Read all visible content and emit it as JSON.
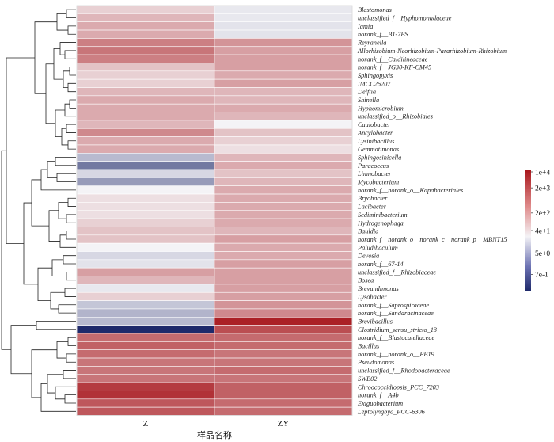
{
  "chart_data": {
    "type": "heatmap",
    "title": "",
    "xlabel": "样品名称",
    "ylabel": "",
    "columns": [
      "Z",
      "ZY"
    ],
    "rows": [
      "Blastomonas",
      "unclassified_f__Hyphomonadaceae",
      "Iamia",
      "norank_f__B1-7BS",
      "Reyranella",
      "Allorhizobium-Neorhizobium-Pararhizobium-Rhizobium",
      "norank_f__Caldilineaceae",
      "norank_f__JG30-KF-CM45",
      "Sphingopyxis",
      "IMCC26207",
      "Delftia",
      "Shinella",
      "Hyphomicrobium",
      "unclassified_o__Rhizobiales",
      "Caulobacter",
      "Ancylobacter",
      "Lysinibacillus",
      "Gemmatimonas",
      "Sphingosinicella",
      "Paracoccus",
      "Limnobacter",
      "Mycobacterium",
      "norank_f__norank_o__Kapabacteriales",
      "Bryobacter",
      "Lacibacter",
      "Sediminibacterium",
      "Hydrogenophaga",
      "Bauldia",
      "norank_f__norank_o__norank_c__norank_p__MBNT15",
      "Paludibaculum",
      "Devosia",
      "norank_f__67-14",
      "unclassified_f__Rhizobiaceae",
      "Bosea",
      "Brevundimonas",
      "Lysobacter",
      "norank_f__Saprospiraceae",
      "norank_f__Sandaracinaceae",
      "Brevibacillus",
      "Clostridium_sensu_stricto_13",
      "norank_f__Blastocatellaceae",
      "Bacillus",
      "norank_f__norank_o__PB19",
      "Pseudomonas",
      "unclassified_f__Rhodobacteraceae",
      "SWB02",
      "Chroococcidiopsis_PCC_7203",
      "norank_f__A4b",
      "Exiguobacterium",
      "Leptolyngbya_PCC-6306"
    ],
    "values_log10": [
      [
        2.2,
        1.8
      ],
      [
        2.4,
        1.8
      ],
      [
        2.5,
        1.7
      ],
      [
        2.5,
        1.7
      ],
      [
        2.9,
        2.7
      ],
      [
        3.0,
        2.6
      ],
      [
        2.9,
        2.6
      ],
      [
        2.3,
        2.6
      ],
      [
        2.2,
        2.5
      ],
      [
        2.2,
        2.6
      ],
      [
        2.4,
        2.4
      ],
      [
        2.5,
        2.4
      ],
      [
        2.5,
        2.5
      ],
      [
        2.5,
        2.4
      ],
      [
        2.4,
        2.0
      ],
      [
        2.8,
        2.3
      ],
      [
        2.5,
        2.2
      ],
      [
        2.5,
        2.1
      ],
      [
        1.0,
        2.4
      ],
      [
        0.0,
        2.5
      ],
      [
        1.5,
        2.3
      ],
      [
        0.5,
        2.4
      ],
      [
        2.0,
        2.5
      ],
      [
        2.1,
        2.5
      ],
      [
        2.1,
        2.5
      ],
      [
        2.1,
        2.5
      ],
      [
        2.2,
        2.5
      ],
      [
        2.3,
        2.4
      ],
      [
        2.3,
        2.6
      ],
      [
        2.0,
        2.5
      ],
      [
        1.5,
        2.5
      ],
      [
        1.7,
        2.6
      ],
      [
        2.6,
        2.6
      ],
      [
        2.4,
        2.6
      ],
      [
        1.8,
        2.6
      ],
      [
        2.2,
        2.6
      ],
      [
        1.2,
        2.7
      ],
      [
        0.9,
        2.8
      ],
      [
        1.0,
        3.9
      ],
      [
        -0.8,
        3.4
      ],
      [
        3.1,
        3.1
      ],
      [
        3.2,
        3.1
      ],
      [
        3.1,
        3.0
      ],
      [
        3.0,
        3.0
      ],
      [
        3.0,
        3.1
      ],
      [
        3.0,
        3.0
      ],
      [
        3.6,
        3.2
      ],
      [
        3.7,
        3.2
      ],
      [
        3.3,
        3.1
      ],
      [
        3.3,
        3.1
      ]
    ],
    "colorbar": {
      "ticks": [
        "1e+4",
        "2e+3",
        "2e+2",
        "4e+1",
        "5e+0",
        "7e-1"
      ],
      "tick_values_log10": [
        4.0,
        3.3,
        2.3,
        1.6,
        0.7,
        -0.15
      ],
      "range_log10": [
        -0.8,
        4.0
      ],
      "colors": {
        "low": "#1f2a6b",
        "mid": "#f4f3f6",
        "high": "#a8171c"
      }
    },
    "dendrogram_leaf_order_matches_rows": true
  }
}
